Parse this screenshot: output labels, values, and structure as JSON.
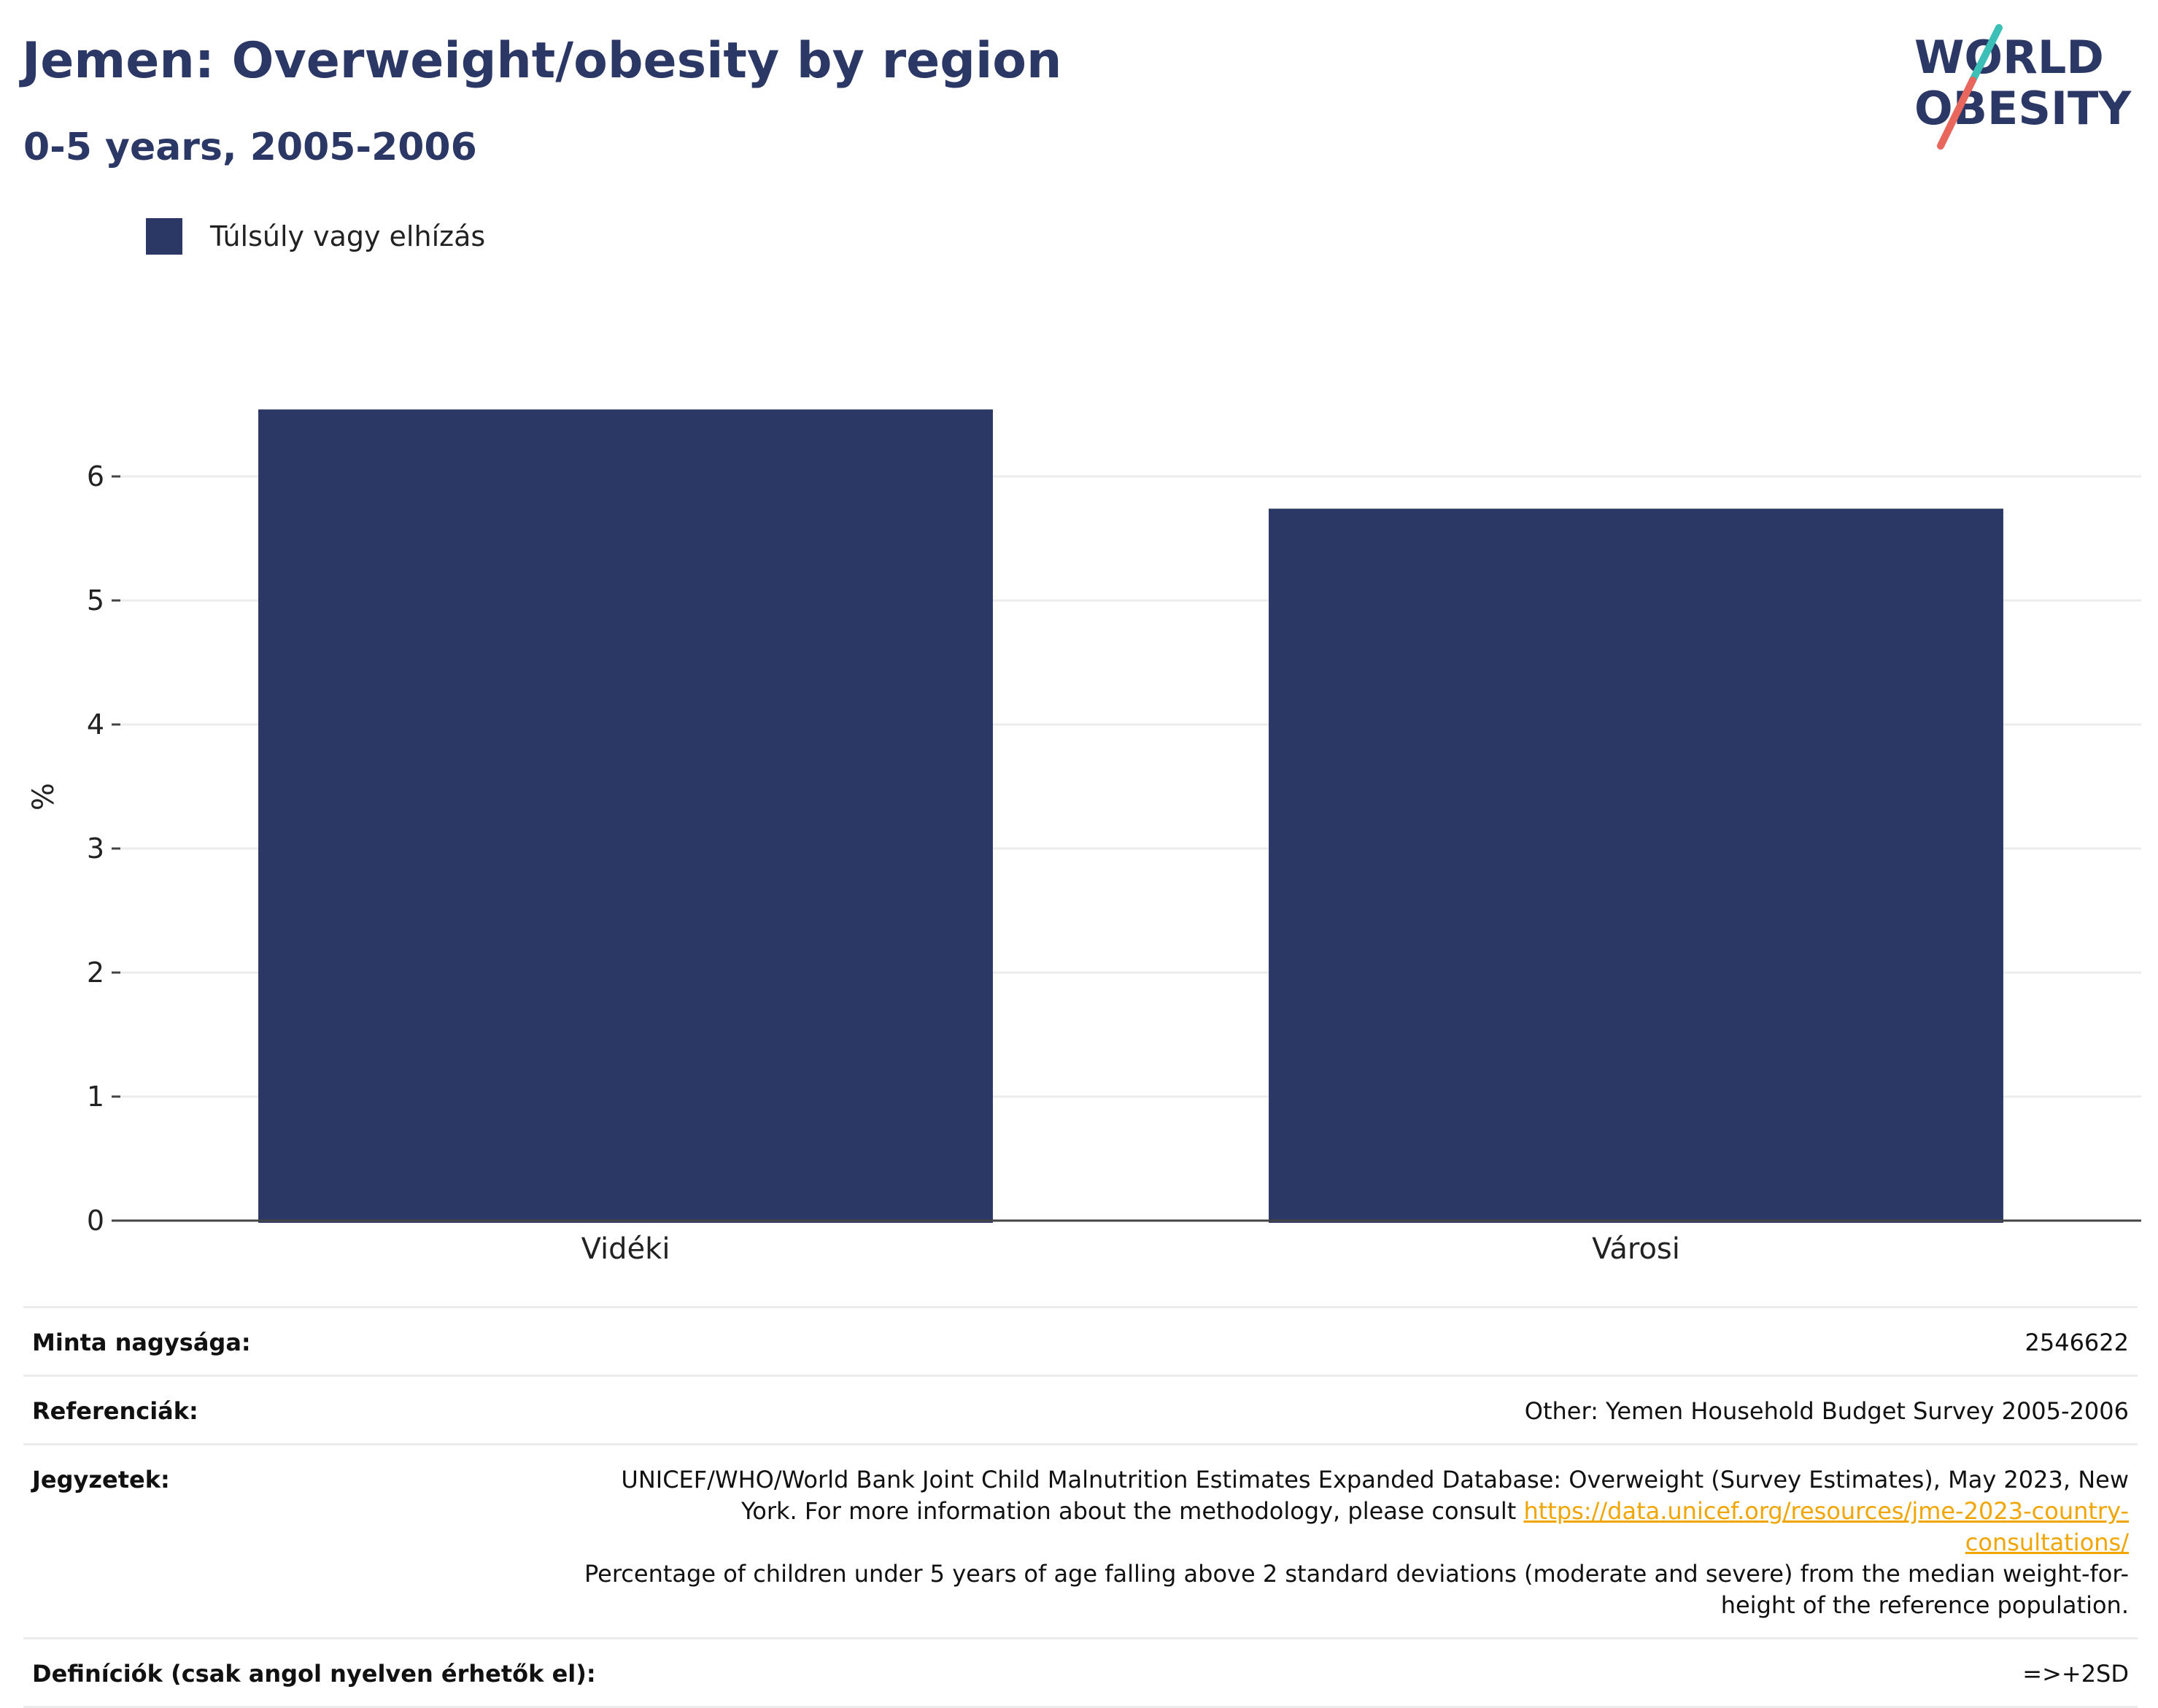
{
  "header": {
    "title": "Jemen: Overweight/obesity by region",
    "subtitle": "0-5 years, 2005-2006"
  },
  "logo": {
    "line1": "WORLD",
    "line2": "OBESITY",
    "colors": {
      "text": "#2b3765",
      "slash_teal": "#3cbfb6",
      "slash_coral": "#e8665c"
    }
  },
  "legend": {
    "items": [
      {
        "label": "Túlsúly vagy elhízás",
        "color": "#2b3765"
      }
    ]
  },
  "chart_data": {
    "type": "bar",
    "categories": [
      "Vidéki",
      "Városi"
    ],
    "series": [
      {
        "name": "Túlsúly vagy elhízás",
        "values": [
          6.54,
          5.74
        ],
        "color": "#2b3765"
      }
    ],
    "ylabel": "%",
    "xlabel": "",
    "ylim": [
      0,
      6.9
    ],
    "yticks": [
      0,
      1,
      2,
      3,
      4,
      5,
      6
    ],
    "grid": true,
    "legend_position": "top-left"
  },
  "meta": {
    "sample_size": {
      "label": "Minta nagysága:",
      "value": "2546622"
    },
    "references": {
      "label": "Referenciák:",
      "value": "Other: Yemen Household Budget Survey 2005-2006"
    },
    "notes": {
      "label": "Jegyzetek:",
      "text_before": "UNICEF/WHO/World Bank Joint Child Malnutrition Estimates Expanded Database: Overweight (Survey Estimates), May 2023, New York. For more information about the methodology, please consult ",
      "link_text": "https://data.unicef.org/resources/jme-2023-country-consultations/",
      "text_after": "Percentage of children under 5 years of age falling above 2 standard deviations (moderate and severe) from the median weight-for-height of the reference population."
    },
    "definitions": {
      "label": "Definíciók (csak angol nyelven érhetők el):",
      "value": "=>+2SD"
    }
  }
}
